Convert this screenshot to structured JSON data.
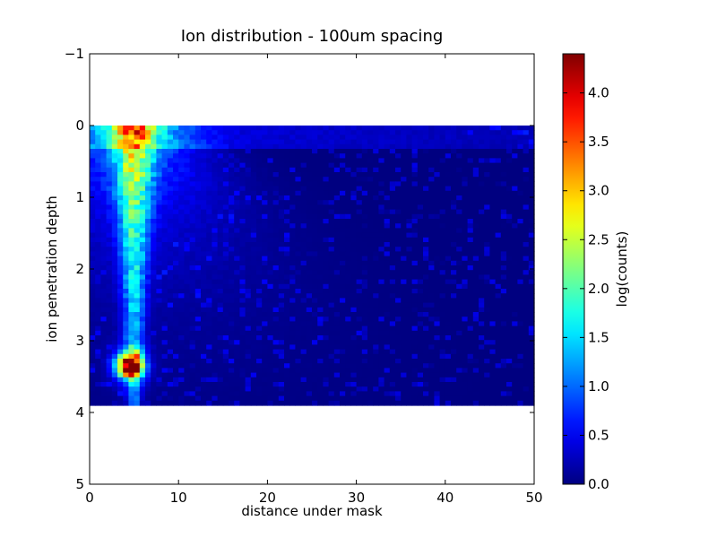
{
  "chart_data": {
    "type": "heatmap",
    "title": "Ion distribution - 100um spacing",
    "xlabel": "distance under mask",
    "ylabel": "ion penetration depth",
    "xlim": [
      0,
      50
    ],
    "ylim": [
      -1,
      5
    ],
    "y_inverted": true,
    "xticks": [
      0,
      10,
      20,
      30,
      40,
      50
    ],
    "yticks": [
      -1,
      0,
      1,
      2,
      3,
      4,
      5
    ],
    "ytick_labels": [
      "−1",
      "0",
      "1",
      "2",
      "3",
      "4",
      "5"
    ],
    "grid": false,
    "data_extent": {
      "x": [
        0,
        50
      ],
      "y": [
        0,
        3.9
      ]
    },
    "colormap": "jet",
    "colorbar": {
      "label": "log(counts)",
      "range": [
        0,
        4.4
      ],
      "ticks": [
        0.0,
        0.5,
        1.0,
        1.5,
        2.0,
        2.5,
        3.0,
        3.5,
        4.0
      ],
      "tick_labels": [
        "0.0",
        "0.5",
        "1.0",
        "1.5",
        "2.0",
        "2.5",
        "3.0",
        "3.5",
        "4.0"
      ]
    },
    "features": {
      "peak": {
        "x": 4.5,
        "y": 3.35,
        "value": 4.4
      },
      "plume_center_x": 5,
      "background_value": 0
    }
  }
}
